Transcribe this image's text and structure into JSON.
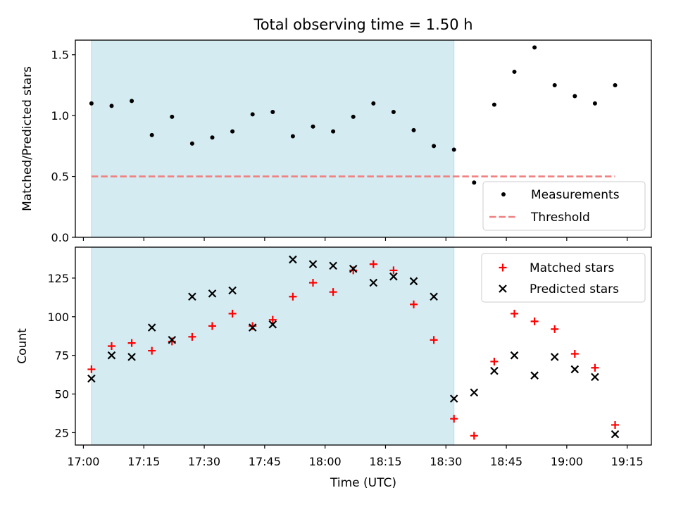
{
  "figure": {
    "title": "Total observing time = 1.50 h",
    "xlabel": "Time (UTC)"
  },
  "colors": {
    "shade": "#add8e6",
    "threshold": "#f08080",
    "matched": "#ff0000",
    "predicted": "#000000",
    "measurement": "#000000"
  },
  "chart_data": [
    {
      "type": "scatter",
      "ylabel": "Matched/Predicted stars",
      "ylim": [
        0,
        1.62
      ],
      "yticks": [
        0.0,
        0.5,
        1.0,
        1.5
      ],
      "ytick_labels": [
        "0.0",
        "0.5",
        "1.0",
        "1.5"
      ],
      "xlim": [
        "16:58",
        "19:21"
      ],
      "xticks": [
        "17:00",
        "17:15",
        "17:30",
        "17:45",
        "18:00",
        "18:15",
        "18:30",
        "18:45",
        "19:00",
        "19:15"
      ],
      "shaded_span": [
        "17:02",
        "18:32"
      ],
      "threshold": {
        "name": "Threshold",
        "value": 0.5,
        "x_range": [
          "17:02",
          "19:12"
        ],
        "style": "dashed"
      },
      "series": [
        {
          "name": "Measurements",
          "marker": "dot",
          "x": [
            "17:02",
            "17:07",
            "17:12",
            "17:17",
            "17:22",
            "17:27",
            "17:32",
            "17:37",
            "17:42",
            "17:47",
            "17:52",
            "17:57",
            "18:02",
            "18:07",
            "18:12",
            "18:17",
            "18:22",
            "18:27",
            "18:32",
            "18:37",
            "18:42",
            "18:47",
            "18:52",
            "18:57",
            "19:02",
            "19:07",
            "19:12"
          ],
          "values": [
            1.1,
            1.08,
            1.12,
            0.84,
            0.99,
            0.77,
            0.82,
            0.87,
            1.01,
            1.03,
            0.83,
            0.91,
            0.87,
            0.99,
            1.1,
            1.03,
            0.88,
            0.75,
            0.72,
            0.45,
            1.09,
            1.36,
            1.56,
            1.25,
            1.16,
            1.1,
            1.25
          ]
        }
      ],
      "legend": {
        "placement": "lower-right",
        "entries": [
          "Measurements",
          "Threshold"
        ]
      },
      "grid": false
    },
    {
      "type": "scatter",
      "ylabel": "Count",
      "ylim": [
        17,
        145
      ],
      "yticks": [
        25,
        50,
        75,
        100,
        125
      ],
      "ytick_labels": [
        "25",
        "50",
        "75",
        "100",
        "125"
      ],
      "xlim": [
        "16:58",
        "19:21"
      ],
      "xticks": [
        "17:00",
        "17:15",
        "17:30",
        "17:45",
        "18:00",
        "18:15",
        "18:30",
        "18:45",
        "19:00",
        "19:15"
      ],
      "shaded_span": [
        "17:02",
        "18:32"
      ],
      "series": [
        {
          "name": "Matched stars",
          "marker": "plus",
          "x": [
            "17:02",
            "17:07",
            "17:12",
            "17:17",
            "17:22",
            "17:27",
            "17:32",
            "17:37",
            "17:42",
            "17:47",
            "17:52",
            "17:57",
            "18:02",
            "18:07",
            "18:12",
            "18:17",
            "18:22",
            "18:27",
            "18:32",
            "18:37",
            "18:42",
            "18:47",
            "18:52",
            "18:57",
            "19:02",
            "19:07",
            "19:12"
          ],
          "values": [
            66,
            81,
            83,
            78,
            84,
            87,
            94,
            102,
            94,
            98,
            113,
            122,
            116,
            130,
            134,
            130,
            108,
            85,
            34,
            23,
            71,
            102,
            97,
            92,
            76,
            67,
            30
          ]
        },
        {
          "name": "Predicted stars",
          "marker": "x",
          "x": [
            "17:02",
            "17:07",
            "17:12",
            "17:17",
            "17:22",
            "17:27",
            "17:32",
            "17:37",
            "17:42",
            "17:47",
            "17:52",
            "17:57",
            "18:02",
            "18:07",
            "18:12",
            "18:17",
            "18:22",
            "18:27",
            "18:32",
            "18:37",
            "18:42",
            "18:47",
            "18:52",
            "18:57",
            "19:02",
            "19:07",
            "19:12"
          ],
          "values": [
            60,
            75,
            74,
            93,
            85,
            113,
            115,
            117,
            93,
            95,
            137,
            134,
            133,
            131,
            122,
            126,
            123,
            113,
            47,
            51,
            65,
            75,
            62,
            74,
            66,
            61,
            24
          ]
        }
      ],
      "legend": {
        "placement": "upper-right",
        "entries": [
          "Matched stars",
          "Predicted stars"
        ]
      },
      "grid": false
    }
  ]
}
